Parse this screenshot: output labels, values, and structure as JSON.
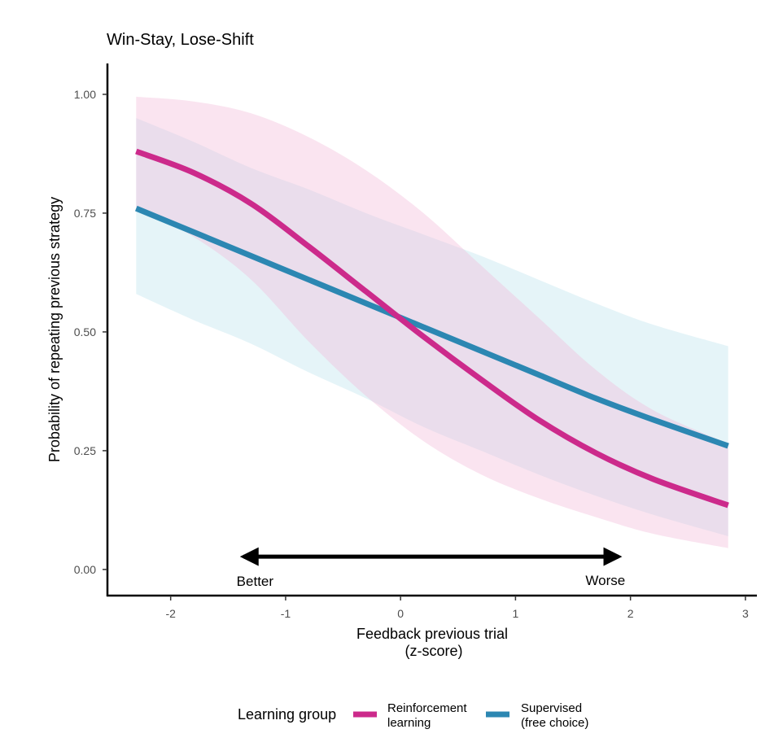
{
  "chart_data": {
    "type": "line",
    "title": "Win-Stay, Lose-Shift",
    "xlabel_line1": "Feedback previous trial",
    "xlabel_line2": "(z-score)",
    "ylabel": "Probability of repeating previous strategy",
    "xlim": [
      -2.55,
      3.1
    ],
    "ylim": [
      -0.055,
      1.065
    ],
    "x_ticks": [
      -2,
      -1,
      0,
      1,
      2,
      3
    ],
    "x_tick_labels": [
      "-2",
      "-1",
      "0",
      "1",
      "2",
      "3"
    ],
    "y_ticks": [
      0,
      0.25,
      0.5,
      0.75,
      1.0
    ],
    "y_tick_labels": [
      "0.00",
      "0.25",
      "0.50",
      "0.75",
      "1.00"
    ],
    "x": [
      -2.3,
      -1.8,
      -1.3,
      -0.8,
      -0.3,
      0.2,
      0.7,
      1.2,
      1.7,
      2.2,
      2.85
    ],
    "series": [
      {
        "name": "Reinforcement learning",
        "color": "#cc2a8b",
        "band_color": "#f3b8d8",
        "values": [
          0.88,
          0.835,
          0.77,
          0.68,
          0.585,
          0.49,
          0.4,
          0.315,
          0.245,
          0.19,
          0.135
        ],
        "lower": [
          0.76,
          0.7,
          0.61,
          0.48,
          0.365,
          0.27,
          0.2,
          0.15,
          0.11,
          0.075,
          0.045
        ],
        "upper": [
          0.995,
          0.985,
          0.96,
          0.91,
          0.84,
          0.75,
          0.64,
          0.53,
          0.42,
          0.335,
          0.265
        ]
      },
      {
        "name": "Supervised (free choice)",
        "color": "#2c87b2",
        "band_color": "#bfe3ee",
        "values": [
          0.76,
          0.71,
          0.66,
          0.61,
          0.56,
          0.51,
          0.46,
          0.41,
          0.36,
          0.315,
          0.26
        ],
        "lower": [
          0.58,
          0.525,
          0.475,
          0.415,
          0.36,
          0.3,
          0.25,
          0.2,
          0.155,
          0.115,
          0.07
        ],
        "upper": [
          0.95,
          0.9,
          0.845,
          0.8,
          0.75,
          0.705,
          0.66,
          0.61,
          0.56,
          0.515,
          0.47
        ]
      }
    ],
    "annotation": {
      "arrow_x_from": -1.45,
      "arrow_x_to": 1.98,
      "arrow_y": 0.027,
      "left_label": "Better",
      "right_label": "Worse"
    },
    "legend": {
      "title": "Learning group",
      "position": "bottom",
      "items": [
        {
          "line1": "Reinforcement",
          "line2": "learning",
          "color": "#cc2a8b"
        },
        {
          "line1": "Supervised",
          "line2": "(free choice)",
          "color": "#2c87b2"
        }
      ]
    }
  }
}
